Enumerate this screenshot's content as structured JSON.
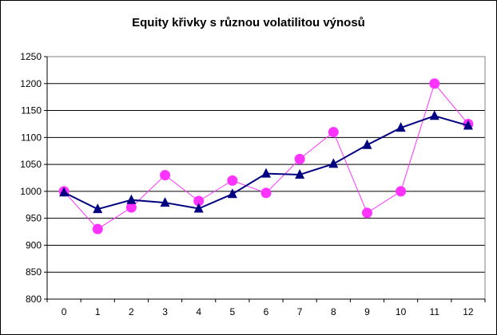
{
  "chart_data": {
    "type": "line",
    "title": "Equity křivky s různou volatilitou výnosů",
    "xlabel": "",
    "ylabel": "",
    "categories": [
      "0",
      "1",
      "2",
      "3",
      "4",
      "5",
      "6",
      "7",
      "8",
      "9",
      "10",
      "11",
      "12"
    ],
    "ylim": [
      800,
      1250
    ],
    "ytick_step": 50,
    "grid": "horizontal",
    "legend": "none",
    "series": [
      {
        "color": "#ff33ff",
        "marker": "circle",
        "values": [
          1000,
          930,
          970,
          1030,
          982,
          1020,
          997,
          1060,
          1110,
          960,
          1000,
          1200,
          1125
        ]
      },
      {
        "color": "#000080",
        "marker": "triangle",
        "values": [
          998,
          967,
          984,
          979,
          968,
          995,
          1033,
          1031,
          1051,
          1086,
          1118,
          1140,
          1122
        ]
      }
    ]
  }
}
